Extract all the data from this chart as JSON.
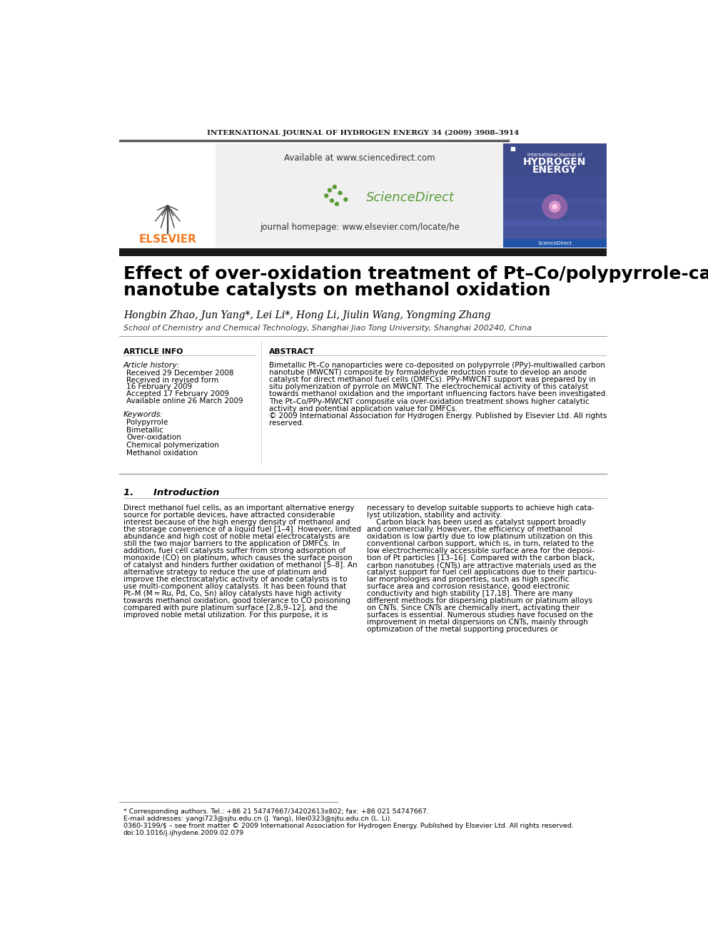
{
  "journal_header": "INTERNATIONAL JOURNAL OF HYDROGEN ENERGY 34 (2009) 3908–3914",
  "elsevier_text": "ELSEVIER",
  "sciencedirect_available": "Available at www.sciencedirect.com",
  "sciencedirect_brand": "ScienceDirect",
  "journal_homepage": "journal homepage: www.elsevier.com/locate/he",
  "title_line1": "Effect of over-oxidation treatment of Pt–Co/polypyrrole-carbon",
  "title_line2": "nanotube catalysts on methanol oxidation",
  "authors": "Hongbin Zhao, Jun Yang*, Lei Li*, Hong Li, Jiulin Wang, Yongming Zhang",
  "affiliation": "School of Chemistry and Chemical Technology, Shanghai Jiao Tong University, Shanghai 200240, China",
  "article_info_title": "ARTICLE INFO",
  "article_history_title": "Article history:",
  "received_1": "Received 29 December 2008",
  "received_revised": "Received in revised form",
  "revised_date": "16 February 2009",
  "accepted": "Accepted 17 February 2009",
  "online": "Available online 26 March 2009",
  "keywords_title": "Keywords:",
  "keywords": [
    "Polypyrrole",
    "Bimetallic",
    "Over-oxidation",
    "Chemical polymerization",
    "Methanol oxidation"
  ],
  "abstract_title": "ABSTRACT",
  "section1_title": "1.      Introduction",
  "intro1_lines": [
    "Direct methanol fuel cells, as an important alternative energy",
    "source for portable devices, have attracted considerable",
    "interest because of the high energy density of methanol and",
    "the storage convenience of a liquid fuel [1–4]. However, limited",
    "abundance and high cost of noble metal electrocatalysts are",
    "still the two major barriers to the application of DMFCs. In",
    "addition, fuel cell catalysts suffer from strong adsorption of",
    "monoxide (CO) on platinum, which causes the surface poison",
    "of catalyst and hinders further oxidation of methanol [5–8]. An",
    "alternative strategy to reduce the use of platinum and",
    "improve the electrocatalytic activity of anode catalysts is to",
    "use multi-component alloy catalysts. It has been found that",
    "Pt–M (M = Ru, Pd, Co, Sn) alloy catalysts have high activity",
    "towards methanol oxidation, good tolerance to CO poisoning",
    "compared with pure platinum surface [2,8,9–12], and the",
    "improved noble metal utilization. For this purpose, it is"
  ],
  "intro2_lines": [
    "necessary to develop suitable supports to achieve high cata-",
    "lyst utilization, stability and activity.",
    "    Carbon black has been used as catalyst support broadly",
    "and commercially. However, the efficiency of methanol",
    "oxidation is low partly due to low platinum utilization on this",
    "conventional carbon support, which is, in turn, related to the",
    "low electrochemically accessible surface area for the deposi-",
    "tion of Pt particles [13–16]. Compared with the carbon black,",
    "carbon nanotubes (CNTs) are attractive materials used as the",
    "catalyst support for fuel cell applications due to their particu-",
    "lar morphologies and properties, such as high specific",
    "surface area and corrosion resistance, good electronic",
    "conductivity and high stability [17,18]. There are many",
    "different methods for dispersing platinum or platinum alloys",
    "on CNTs. Since CNTs are chemically inert, activating their",
    "surfaces is essential. Numerous studies have focused on the",
    "improvement in metal dispersions on CNTs, mainly through",
    "optimization of the metal supporting procedures or"
  ],
  "abstract_lines": [
    "Bimetallic Pt–Co nanoparticles were co-deposited on polypyrrole (PPy)-multiwalled carbon",
    "nanotube (MWCNT) composite by formaldehyde reduction route to develop an anode",
    "catalyst for direct methanol fuel cells (DMFCs). PPy-MWCNT support was prepared by in",
    "situ polymerization of pyrrole on MWCNT. The electrochemical activity of this catalyst",
    "towards methanol oxidation and the important influencing factors have been investigated.",
    "The Pt–Co/PPy-MWCNT composite via over-oxidation treatment shows higher catalytic",
    "activity and potential application value for DMFCs.",
    "© 2009 International Association for Hydrogen Energy. Published by Elsevier Ltd. All rights",
    "reserved."
  ],
  "footnote_star": "* Corresponding authors. Tel.: +86 21 54747667/34202613x802; fax: +86 021 54747667.",
  "footnote_email": "E-mail addresses: yangi723@sjtu.edu.cn (J. Yang), lilei0323@sjtu.edu.cn (L. Li).",
  "footnote_issn": "0360-3199/$ – see front matter © 2009 International Association for Hydrogen Energy. Published by Elsevier Ltd. All rights reserved.",
  "footnote_doi": "doi:10.1016/j.ijhydene.2009.02.079",
  "bg_color": "#ffffff",
  "title_bar_color": "#1a1a1a",
  "elsevier_orange": "#f47920",
  "journal_cover_blue": "#3d4a8c"
}
